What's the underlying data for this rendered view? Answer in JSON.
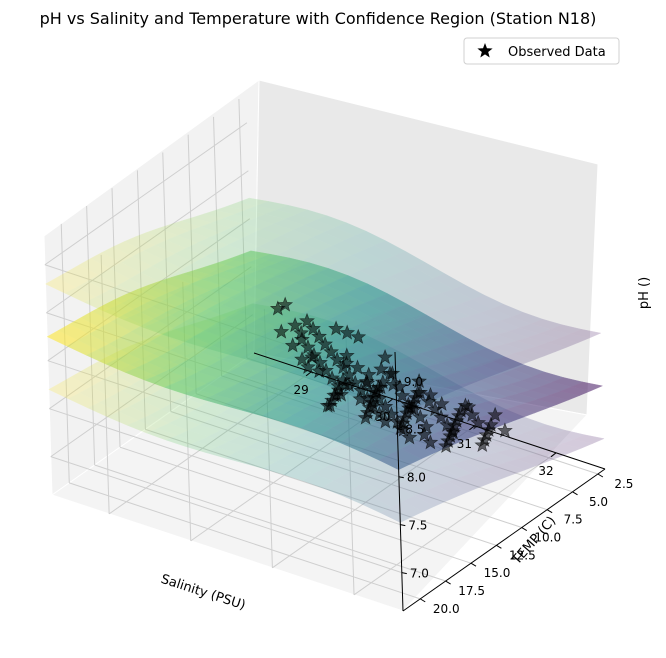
{
  "chart_data": {
    "type": "scatter",
    "title": "pH vs Salinity and Temperature with Confidence Region (Station N18)",
    "xlabel": "Salinity (PSU)",
    "ylabel": "TEMP (C)",
    "zlabel": "pH ()",
    "x_ticks": [
      "29",
      "30",
      "31",
      "32"
    ],
    "y_ticks": [
      "2.5",
      "5.0",
      "7.5",
      "10.0",
      "12.5",
      "15.0",
      "17.5",
      "20.0"
    ],
    "z_ticks": [
      "7.0",
      "7.5",
      "8.0",
      "8.5",
      "9.0"
    ],
    "xlim": [
      28.3,
      32.6
    ],
    "ylim": [
      1.8,
      21.7
    ],
    "zlim": [
      6.6,
      9.3
    ],
    "grid": true,
    "legend_position": "top-right",
    "surfaces": [
      "mean fit (viridis)",
      "upper confidence bound",
      "lower confidence bound"
    ],
    "series": [
      {
        "name": "Observed Data",
        "marker": "star",
        "color": "#000000",
        "points": [
          [
            28.8,
            3.0,
            7.05
          ],
          [
            29.0,
            3.5,
            7.0
          ],
          [
            29.3,
            4.0,
            7.0
          ],
          [
            32.0,
            18.0,
            8.8
          ],
          [
            32.3,
            19.0,
            8.65
          ],
          [
            30.3,
            8.5,
            7.55
          ],
          [
            30.5,
            10.0,
            7.8
          ],
          [
            30.6,
            11.0,
            7.6
          ],
          [
            30.7,
            12.0,
            7.75
          ],
          [
            30.8,
            13.0,
            7.7
          ],
          [
            30.9,
            14.0,
            7.85
          ],
          [
            31.0,
            15.0,
            7.9
          ],
          [
            31.1,
            16.0,
            8.0
          ],
          [
            31.2,
            17.0,
            8.05
          ],
          [
            31.3,
            18.0,
            8.1
          ],
          [
            31.4,
            19.0,
            8.2
          ],
          [
            30.9,
            9.0,
            7.65
          ],
          [
            31.0,
            10.5,
            7.7
          ],
          [
            31.1,
            11.5,
            7.75
          ],
          [
            31.2,
            12.5,
            7.85
          ],
          [
            31.3,
            13.5,
            7.9
          ],
          [
            31.4,
            14.5,
            7.95
          ],
          [
            31.5,
            15.5,
            8.0
          ],
          [
            31.6,
            16.5,
            8.05
          ],
          [
            31.7,
            17.5,
            8.1
          ],
          [
            31.8,
            18.5,
            8.15
          ],
          [
            31.3,
            9.5,
            7.6
          ],
          [
            31.4,
            10.5,
            7.65
          ],
          [
            31.5,
            11.5,
            7.7
          ],
          [
            31.6,
            12.5,
            7.75
          ],
          [
            31.7,
            13.5,
            7.85
          ],
          [
            31.8,
            14.5,
            7.9
          ],
          [
            31.9,
            15.5,
            7.95
          ],
          [
            32.0,
            16.5,
            8.0
          ],
          [
            32.1,
            17.5,
            8.05
          ],
          [
            31.7,
            8.5,
            7.45
          ],
          [
            31.8,
            9.5,
            7.5
          ],
          [
            31.9,
            10.5,
            7.55
          ],
          [
            32.0,
            11.5,
            7.6
          ],
          [
            32.1,
            12.5,
            7.65
          ],
          [
            32.2,
            13.5,
            7.7
          ],
          [
            32.3,
            14.5,
            7.75
          ],
          [
            32.4,
            15.5,
            7.8
          ],
          [
            32.0,
            8.0,
            7.35
          ],
          [
            32.1,
            9.0,
            7.4
          ],
          [
            32.2,
            10.0,
            7.45
          ],
          [
            32.3,
            11.0,
            7.5
          ],
          [
            32.4,
            12.0,
            7.55
          ],
          [
            30.6,
            7.5,
            7.5
          ],
          [
            30.8,
            8.0,
            7.55
          ],
          [
            31.0,
            7.0,
            7.45
          ],
          [
            31.2,
            7.5,
            7.4
          ],
          [
            31.4,
            8.0,
            7.4
          ],
          [
            31.5,
            6.5,
            7.3
          ],
          [
            31.6,
            7.0,
            7.35
          ],
          [
            31.8,
            6.0,
            7.25
          ],
          [
            29.8,
            5.5,
            7.55
          ],
          [
            30.0,
            6.0,
            7.6
          ],
          [
            30.2,
            6.5,
            7.65
          ],
          [
            29.7,
            7.5,
            7.75
          ],
          [
            29.9,
            8.5,
            7.8
          ],
          [
            30.1,
            9.5,
            7.85
          ],
          [
            30.3,
            10.5,
            7.9
          ],
          [
            30.5,
            11.5,
            7.95
          ],
          [
            30.7,
            12.5,
            8.0
          ],
          [
            30.9,
            13.5,
            8.05
          ],
          [
            31.1,
            14.5,
            8.1
          ],
          [
            31.3,
            15.5,
            8.15
          ],
          [
            31.5,
            16.5,
            8.2
          ],
          [
            31.7,
            17.5,
            8.25
          ],
          [
            31.9,
            18.5,
            8.3
          ],
          [
            32.1,
            19.5,
            8.35
          ],
          [
            32.3,
            20.5,
            8.4
          ],
          [
            30.4,
            13.5,
            8.2
          ],
          [
            30.6,
            14.5,
            8.25
          ],
          [
            30.8,
            15.5,
            8.3
          ],
          [
            31.0,
            16.5,
            8.35
          ],
          [
            31.2,
            17.5,
            8.4
          ],
          [
            31.4,
            18.5,
            8.45
          ],
          [
            31.6,
            19.5,
            8.5
          ],
          [
            31.0,
            12.0,
            7.8
          ],
          [
            31.2,
            13.0,
            7.85
          ],
          [
            31.4,
            14.0,
            7.9
          ],
          [
            31.6,
            15.0,
            7.95
          ],
          [
            31.8,
            16.0,
            8.0
          ],
          [
            32.0,
            17.0,
            8.05
          ],
          [
            32.2,
            18.0,
            8.1
          ],
          [
            32.4,
            19.0,
            8.15
          ],
          [
            31.9,
            12.0,
            7.7
          ],
          [
            32.1,
            13.0,
            7.75
          ],
          [
            32.3,
            14.0,
            7.8
          ],
          [
            32.2,
            16.0,
            7.9
          ],
          [
            32.4,
            17.0,
            7.95
          ],
          [
            31.5,
            10.0,
            7.6
          ],
          [
            31.7,
            11.0,
            7.65
          ],
          [
            31.9,
            9.0,
            7.5
          ],
          [
            32.1,
            10.0,
            7.55
          ],
          [
            32.3,
            9.0,
            7.45
          ],
          [
            31.0,
            9.5,
            7.6
          ],
          [
            30.8,
            10.5,
            7.65
          ],
          [
            31.2,
            8.5,
            7.5
          ],
          [
            31.3,
            11.0,
            7.68
          ],
          [
            31.5,
            12.0,
            7.72
          ],
          [
            31.7,
            13.0,
            7.8
          ],
          [
            31.9,
            14.0,
            7.85
          ],
          [
            32.1,
            15.0,
            7.88
          ],
          [
            30.5,
            9.0,
            7.6
          ],
          [
            30.7,
            9.5,
            7.62
          ],
          [
            29.5,
            8.0,
            7.9
          ],
          [
            29.6,
            9.5,
            8.0
          ],
          [
            30.0,
            11.0,
            8.05
          ],
          [
            30.2,
            12.0,
            8.1
          ],
          [
            31.1,
            19.0,
            8.6
          ],
          [
            31.3,
            20.0,
            8.65
          ],
          [
            31.5,
            20.5,
            8.7
          ],
          [
            31.8,
            20.0,
            8.6
          ],
          [
            32.0,
            20.5,
            8.55
          ]
        ]
      }
    ]
  }
}
